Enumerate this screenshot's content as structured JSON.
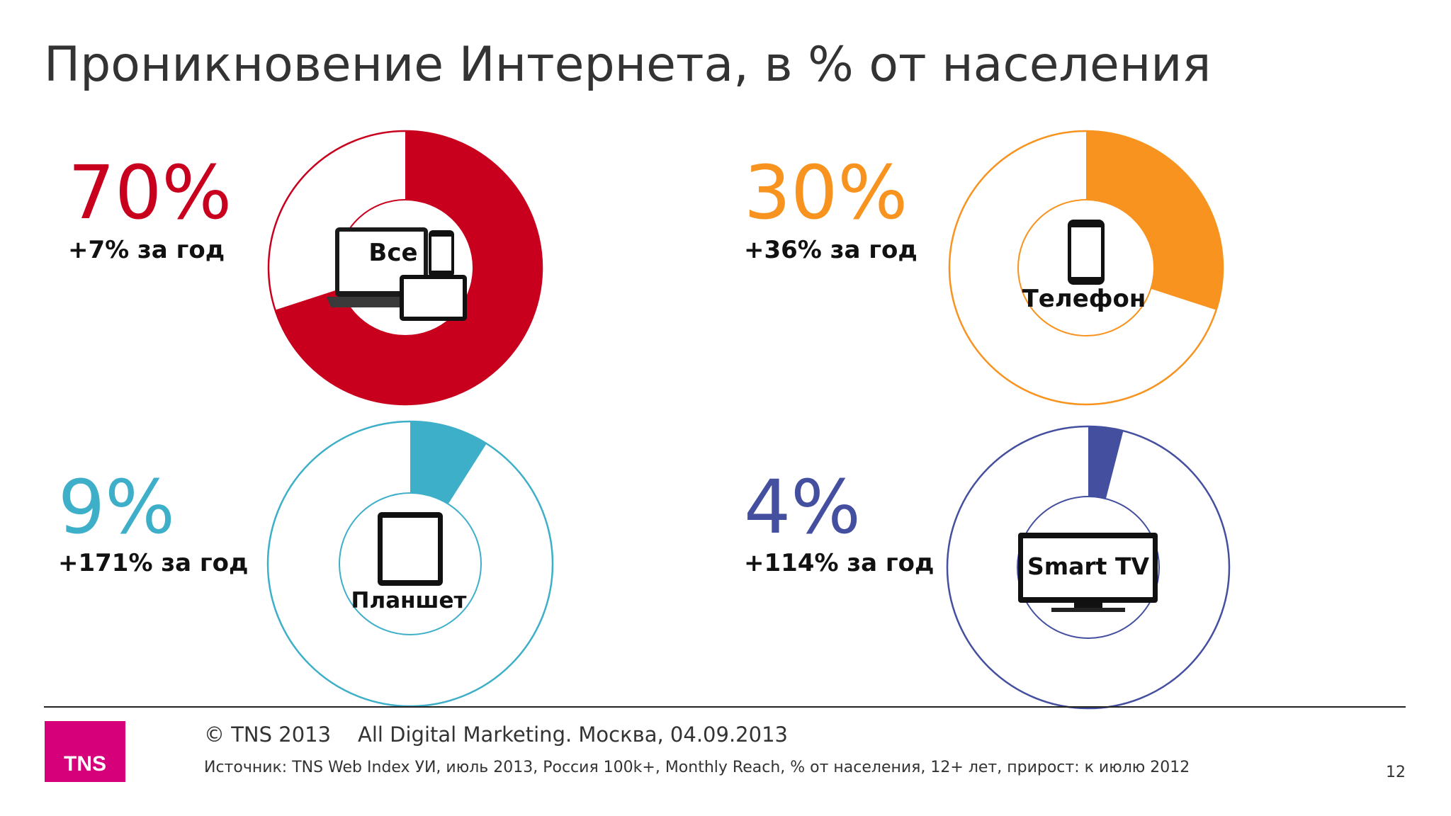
{
  "title": "Проникновение Интернета, в % от населения",
  "charts": [
    {
      "pct_label": "70%",
      "growth": "+7% за год",
      "device": "Все",
      "color": "#c8001e"
    },
    {
      "pct_label": "30%",
      "growth": "+36% за год",
      "device": "Телефон",
      "color": "#f7931e"
    },
    {
      "pct_label": "9%",
      "growth": "+171% за год",
      "device": "Планшет",
      "color": "#3eafc9"
    },
    {
      "pct_label": "4%",
      "growth": "+114% за год",
      "device": "Smart TV",
      "color": "#44509f"
    }
  ],
  "chart_data": [
    {
      "type": "pie",
      "categories": [
        "Все"
      ],
      "values": [
        70
      ],
      "growth_yoy": "+7% за год",
      "color": "#c8001e"
    },
    {
      "type": "pie",
      "categories": [
        "Телефон"
      ],
      "values": [
        30
      ],
      "growth_yoy": "+36% за год",
      "color": "#f7931e"
    },
    {
      "type": "pie",
      "categories": [
        "Планшет"
      ],
      "values": [
        9
      ],
      "growth_yoy": "+171% за год",
      "color": "#3eafc9"
    },
    {
      "type": "pie",
      "categories": [
        "Smart TV"
      ],
      "values": [
        4
      ],
      "growth_yoy": "+114% за год",
      "color": "#44509f"
    }
  ],
  "footer": {
    "copyright": "© TNS 2013",
    "event": "All Digital Marketing. Москва, 04.09.2013",
    "source": "Источник: TNS Web Index УИ, июль 2013, Россия 100k+, Monthly Reach, % от населения, 12+ лет, прирост: к июлю 2012",
    "page_number": "12",
    "logo_text": "TNS",
    "logo_color": "#d6007a"
  }
}
